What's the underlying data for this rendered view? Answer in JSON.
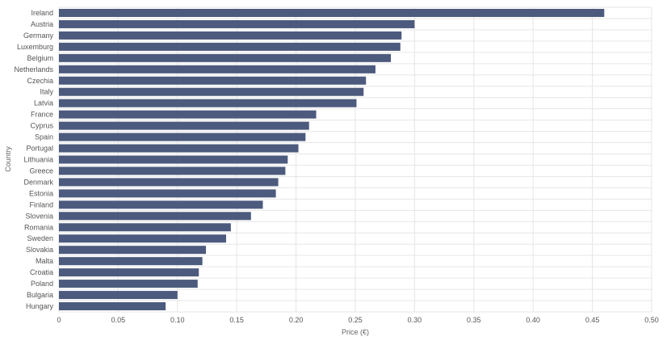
{
  "chart_data": {
    "type": "bar",
    "orientation": "horizontal",
    "categories": [
      "Ireland",
      "Austria",
      "Germany",
      "Luxemburg",
      "Belgium",
      "Netherlands",
      "Czechia",
      "Italy",
      "Latvia",
      "France",
      "Cyprus",
      "Spain",
      "Portugal",
      "Lithuania",
      "Greece",
      "Denmark",
      "Estonia",
      "Finland",
      "Slovenia",
      "Romania",
      "Sweden",
      "Slovakia",
      "Malta",
      "Croatia",
      "Poland",
      "Bulgaria",
      "Hungary"
    ],
    "values": [
      0.46,
      0.3,
      0.289,
      0.288,
      0.28,
      0.267,
      0.259,
      0.257,
      0.251,
      0.217,
      0.211,
      0.208,
      0.202,
      0.193,
      0.191,
      0.185,
      0.183,
      0.172,
      0.162,
      0.145,
      0.141,
      0.124,
      0.121,
      0.118,
      0.117,
      0.1,
      0.09
    ],
    "xlabel": "Price (€)",
    "ylabel": "Country",
    "xlim": [
      0,
      0.5
    ],
    "xticks": [
      "0",
      "0.05",
      "0.10",
      "0.15",
      "0.20",
      "0.25",
      "0.30",
      "0.35",
      "0.40",
      "0.45",
      "0.50"
    ],
    "grid": "vertical",
    "bar_color": "#4c5a7d"
  }
}
